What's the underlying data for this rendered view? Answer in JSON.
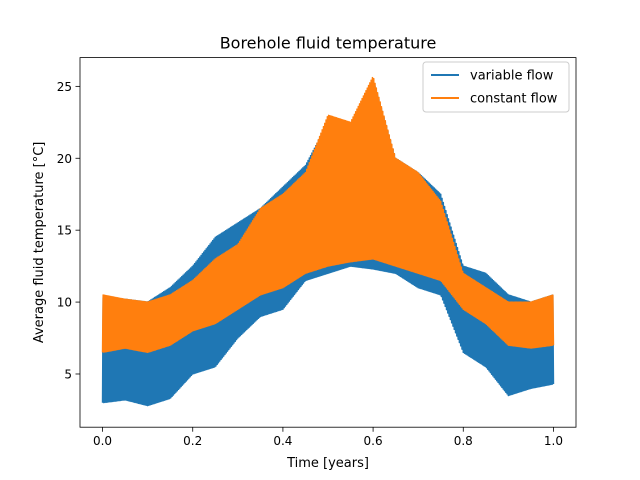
{
  "chart_data": {
    "type": "line",
    "title": "Borehole fluid temperature",
    "xlabel": "Time [years]",
    "ylabel": "Average fluid temperature [°C]",
    "xlim": [
      -0.05,
      1.05
    ],
    "ylim": [
      1.3,
      27.0
    ],
    "xticks": [
      0.0,
      0.2,
      0.4,
      0.6,
      0.8,
      1.0
    ],
    "xtick_labels": [
      "0.0",
      "0.2",
      "0.4",
      "0.6",
      "0.8",
      "1.0"
    ],
    "yticks": [
      5,
      10,
      15,
      20,
      25
    ],
    "ytick_labels": [
      "5",
      "10",
      "15",
      "20",
      "25"
    ],
    "grid": false,
    "legend_position": "upper right",
    "series": [
      {
        "name": "variable flow",
        "color": "#1f77b4",
        "x": [
          0.0,
          0.05,
          0.1,
          0.15,
          0.2,
          0.25,
          0.3,
          0.35,
          0.4,
          0.45,
          0.5,
          0.55,
          0.6,
          0.65,
          0.7,
          0.75,
          0.8,
          0.85,
          0.9,
          0.95,
          1.0
        ],
        "y_low": [
          3.0,
          3.2,
          2.8,
          3.3,
          5.0,
          5.5,
          7.5,
          9.0,
          9.5,
          11.5,
          12.0,
          12.5,
          12.3,
          12.0,
          11.0,
          10.5,
          6.5,
          5.5,
          3.5,
          4.0,
          4.3
        ],
        "y_high": [
          10.3,
          10.2,
          10.0,
          11.0,
          12.5,
          14.5,
          15.5,
          16.5,
          18.0,
          19.5,
          22.5,
          22.0,
          25.5,
          20.0,
          19.0,
          17.5,
          12.5,
          12.0,
          10.5,
          10.0,
          10.5
        ]
      },
      {
        "name": "constant flow",
        "color": "#ff7f0e",
        "x": [
          0.0,
          0.05,
          0.1,
          0.15,
          0.2,
          0.25,
          0.3,
          0.35,
          0.4,
          0.45,
          0.5,
          0.55,
          0.6,
          0.65,
          0.7,
          0.75,
          0.8,
          0.85,
          0.9,
          0.95,
          1.0
        ],
        "y_low": [
          6.5,
          6.8,
          6.5,
          7.0,
          8.0,
          8.5,
          9.5,
          10.5,
          11.0,
          12.0,
          12.5,
          12.8,
          13.0,
          12.5,
          12.0,
          11.5,
          9.5,
          8.5,
          7.0,
          6.8,
          7.0
        ],
        "y_high": [
          10.5,
          10.2,
          10.0,
          10.5,
          11.5,
          13.0,
          14.0,
          16.5,
          17.5,
          19.0,
          23.0,
          22.5,
          25.7,
          20.0,
          19.0,
          17.0,
          12.0,
          11.0,
          10.0,
          10.0,
          10.5
        ]
      }
    ]
  }
}
